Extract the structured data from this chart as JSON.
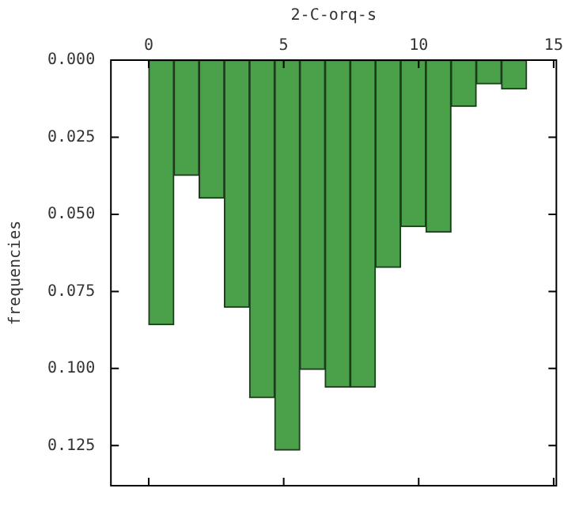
{
  "chart_data": {
    "type": "histogram",
    "xlabel": "2-C-orq-s",
    "ylabel": "frequencies",
    "bins": [
      0,
      0.9333,
      1.8667,
      2.8,
      3.7333,
      4.6667,
      5.6,
      6.5333,
      7.4667,
      8.4,
      9.3333,
      10.2667,
      11.2,
      12.1333,
      13.0667,
      14
    ],
    "values": [
      0.0858,
      0.0374,
      0.0448,
      0.0802,
      0.1095,
      0.1265,
      0.1003,
      0.1061,
      0.1061,
      0.0672,
      0.054,
      0.0558,
      0.015,
      0.0077,
      0.0094
    ],
    "color": "#4aa14a",
    "xlim": [
      -1.4,
      15.1
    ],
    "xticks": [
      0,
      5,
      10,
      15
    ],
    "ylim": [
      0.138,
      0
    ],
    "yticks": [
      {
        "value": 0,
        "label": "0.000"
      },
      0.025,
      {
        "value": 0.05,
        "label": "0.050"
      },
      0.075,
      {
        "value": 0.1,
        "label": "0.100"
      },
      0.125
    ],
    "grid": false,
    "legend": false
  }
}
